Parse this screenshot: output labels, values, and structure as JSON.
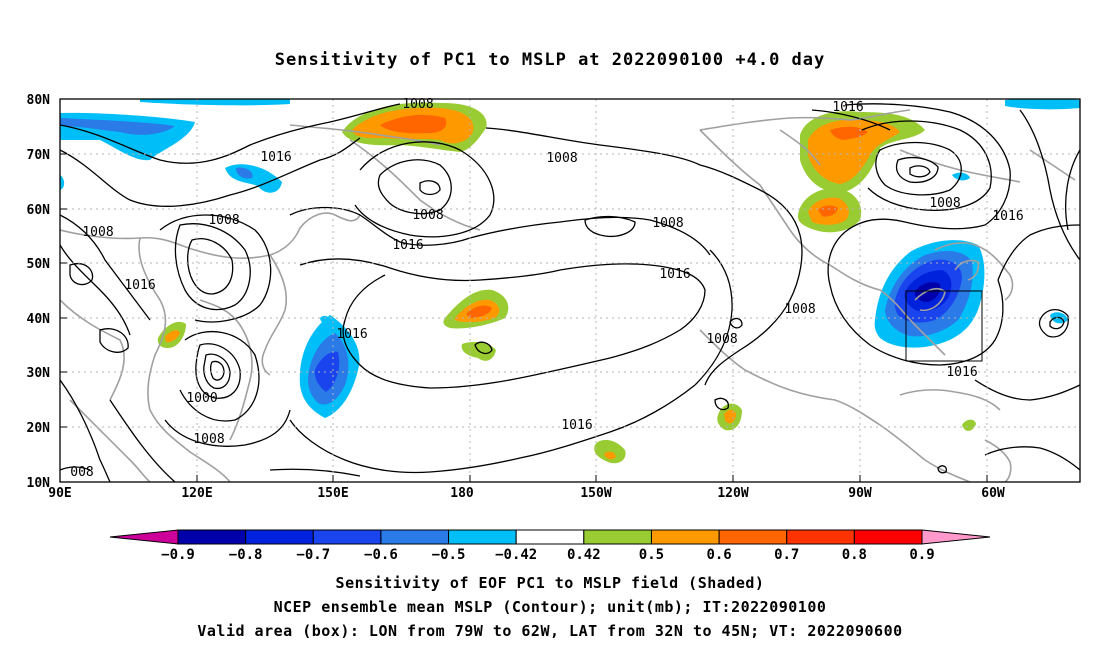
{
  "title": "Sensitivity of PC1 to MSLP at 2022090100 +4.0 day",
  "y_ticks": [
    "80N",
    "70N",
    "60N",
    "50N",
    "40N",
    "30N",
    "20N",
    "10N"
  ],
  "x_ticks": [
    "90E",
    "120E",
    "150E",
    "180",
    "150W",
    "120W",
    "90W",
    "60W"
  ],
  "contour_labels": {
    "c1": "1008",
    "c2": "1016",
    "c3": "1008",
    "c4": "1008",
    "c5": "1016",
    "c6": "1008",
    "c7": "1016",
    "c8": "1008",
    "c9": "1016",
    "c10": "1016",
    "c11": "1008",
    "c12": "1016",
    "c13": "1000",
    "c14": "1008",
    "c15": "1016",
    "c16": "1008",
    "c17": "1008",
    "c18": "1016",
    "c19": "1008",
    "c20": "008"
  },
  "colorbar_labels": [
    "−0.9",
    "−0.8",
    "−0.7",
    "−0.6",
    "−0.5",
    "−0.42",
    "0.42",
    "0.5",
    "0.6",
    "0.7",
    "0.8",
    "0.9"
  ],
  "colorbar_colors": [
    "#cc0099",
    "#0000aa",
    "#0022dd",
    "#1a44ee",
    "#2a7ae8",
    "#00bff8",
    "#ffffff",
    "#99cc33",
    "#ff9900",
    "#ff6600",
    "#ff3300",
    "#ff0000",
    "#ff99cc"
  ],
  "caption_lines": [
    "Sensitivity of EOF PC1 to MSLP field (Shaded)",
    "NCEP ensemble mean MSLP (Contour); unit(mb); IT:2022090100",
    "Valid area (box): LON from 79W to 62W, LAT from 32N to 45N; VT: 2022090600"
  ]
}
